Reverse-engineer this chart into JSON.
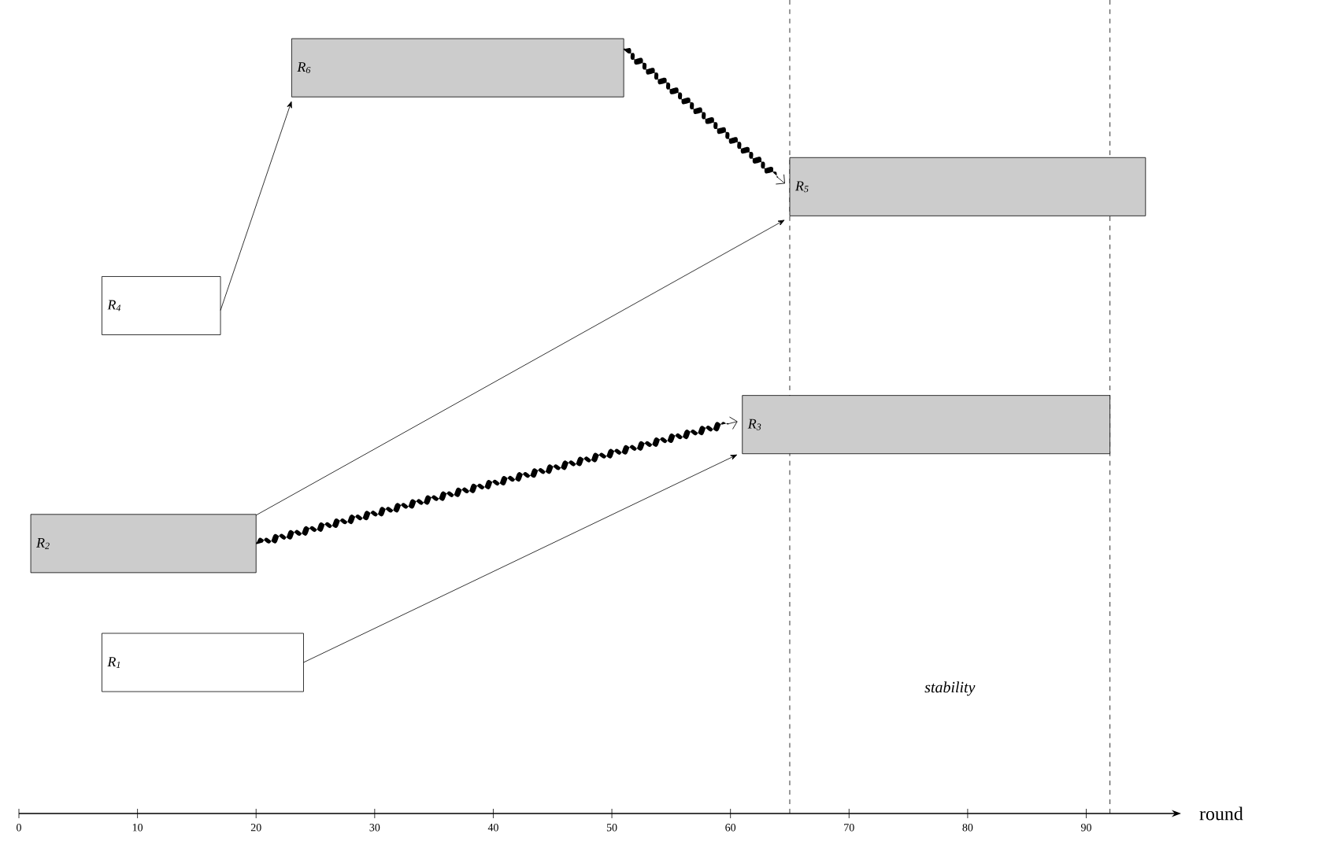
{
  "chart_data": {
    "type": "bar",
    "orientation": "horizontal",
    "xlabel": "round",
    "categories": [
      "R$_{6}$",
      "R$_{5}$",
      "R$_{4}$",
      "R$_{3}$",
      "R$_{2}$",
      "R$_{1}$"
    ],
    "base": [
      23,
      65,
      7,
      61,
      1,
      7
    ],
    "values": [
      28,
      30,
      10,
      31,
      19,
      17
    ],
    "colors": [
      "#cccccc",
      "#cccccc",
      "#ffffff",
      "#cccccc",
      "#cccccc",
      "#ffffff"
    ],
    "xlim": [
      0,
      98
    ],
    "xticks": [
      0,
      10,
      20,
      30,
      40,
      50,
      60,
      70,
      80,
      90
    ],
    "tick_labels": "x",
    "grid": false,
    "ref_lines": [
      {
        "axis": "x",
        "value": 65,
        "line_style": "dashed"
      },
      {
        "axis": "x",
        "value": 92,
        "line_style": "dashed"
      }
    ],
    "annotations": [
      "stability"
    ]
  }
}
